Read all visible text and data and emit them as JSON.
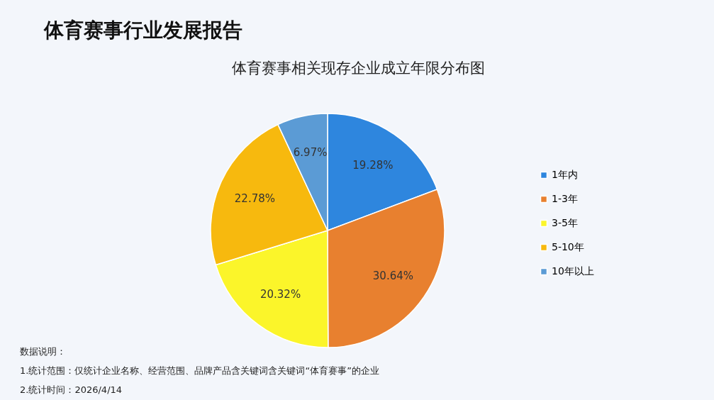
{
  "chart_data": {
    "type": "pie",
    "title": "体育赛事行业发展报告",
    "subtitle": "体育赛事相关现存企业成立年限分布图",
    "categories": [
      "1年内",
      "1-3年",
      "3-5年",
      "5-10年",
      "10年以上"
    ],
    "values": [
      19.28,
      30.64,
      20.32,
      22.78,
      6.97
    ],
    "value_labels": [
      "19.28%",
      "30.64%",
      "20.32%",
      "22.78%",
      "6.97%"
    ],
    "colors": [
      "#2e86de",
      "#e8802f",
      "#fbf52a",
      "#f7b90e",
      "#5b9bd5"
    ],
    "legend": "right",
    "annotations": [
      "数据说明：",
      "1.统计范围：仅统计企业名称、经营范围、品牌产品含关键词含关键词“体育赛事”的企业",
      "2.统计时间：2026/4/14"
    ]
  }
}
